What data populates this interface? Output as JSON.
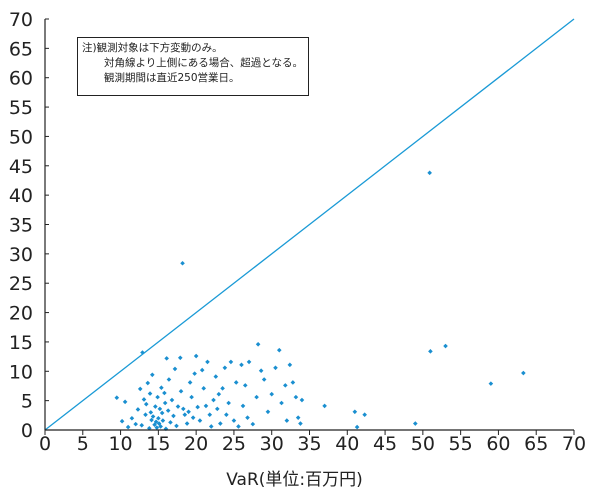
{
  "chart_data": {
    "type": "scatter",
    "xlabel": "VaR(単位:百万円)",
    "ylabel": "",
    "xlim": [
      0,
      70
    ],
    "ylim": [
      0,
      70
    ],
    "xticks": [
      0,
      5,
      10,
      15,
      20,
      25,
      30,
      35,
      40,
      45,
      50,
      55,
      60,
      65,
      70
    ],
    "yticks": [
      0,
      5,
      10,
      15,
      20,
      25,
      30,
      35,
      40,
      45,
      50,
      55,
      60,
      65,
      70
    ],
    "grid": false,
    "reference_line": {
      "from": [
        0,
        0
      ],
      "to": [
        70,
        70
      ],
      "color": "#1a9ad6"
    },
    "note": {
      "line1": "注)観測対象は下方変動のみ。",
      "line2": "対角線より上側にある場合、超過となる。",
      "line3": "観測期間は直近250営業日。"
    },
    "colors": {
      "points": "#1a8fd0",
      "line": "#1a9ad6",
      "axis": "#222222"
    },
    "points": [
      [
        9.5,
        5.5
      ],
      [
        10.2,
        1.5
      ],
      [
        10.6,
        4.8
      ],
      [
        11.0,
        0.5
      ],
      [
        11.5,
        2.0
      ],
      [
        12.0,
        1.0
      ],
      [
        12.3,
        3.5
      ],
      [
        12.6,
        7.0
      ],
      [
        12.8,
        0.8
      ],
      [
        12.9,
        13.2
      ],
      [
        13.1,
        5.2
      ],
      [
        13.3,
        2.6
      ],
      [
        13.4,
        4.4
      ],
      [
        13.6,
        8.0
      ],
      [
        13.8,
        0.3
      ],
      [
        13.9,
        6.2
      ],
      [
        14.0,
        3.0
      ],
      [
        14.1,
        1.7
      ],
      [
        14.2,
        9.4
      ],
      [
        14.3,
        2.3
      ],
      [
        14.5,
        0.9
      ],
      [
        14.6,
        4.0
      ],
      [
        14.7,
        1.4
      ],
      [
        14.8,
        0.4
      ],
      [
        14.9,
        5.6
      ],
      [
        15.0,
        2.0
      ],
      [
        15.1,
        1.1
      ],
      [
        15.2,
        3.6
      ],
      [
        15.3,
        0.6
      ],
      [
        15.4,
        7.2
      ],
      [
        15.5,
        2.9
      ],
      [
        15.6,
        1.6
      ],
      [
        15.8,
        6.3
      ],
      [
        15.9,
        4.6
      ],
      [
        16.0,
        0.2
      ],
      [
        16.1,
        12.2
      ],
      [
        16.3,
        3.3
      ],
      [
        16.4,
        8.6
      ],
      [
        16.6,
        1.3
      ],
      [
        16.8,
        5.1
      ],
      [
        17.0,
        2.4
      ],
      [
        17.2,
        10.4
      ],
      [
        17.4,
        0.7
      ],
      [
        17.6,
        4.0
      ],
      [
        17.9,
        12.3
      ],
      [
        18.0,
        6.6
      ],
      [
        18.2,
        28.4
      ],
      [
        18.3,
        3.6
      ],
      [
        18.5,
        2.6
      ],
      [
        18.8,
        1.1
      ],
      [
        19.0,
        3.1
      ],
      [
        19.2,
        8.1
      ],
      [
        19.4,
        5.6
      ],
      [
        19.6,
        2.1
      ],
      [
        19.8,
        9.6
      ],
      [
        20.0,
        12.6
      ],
      [
        20.2,
        3.9
      ],
      [
        20.5,
        1.6
      ],
      [
        20.8,
        10.2
      ],
      [
        21.0,
        7.1
      ],
      [
        21.3,
        4.1
      ],
      [
        21.5,
        11.6
      ],
      [
        21.8,
        2.6
      ],
      [
        22.0,
        0.6
      ],
      [
        22.3,
        5.1
      ],
      [
        22.6,
        9.1
      ],
      [
        22.8,
        3.6
      ],
      [
        23.0,
        6.1
      ],
      [
        23.2,
        1.1
      ],
      [
        23.5,
        7.1
      ],
      [
        23.8,
        10.6
      ],
      [
        24.0,
        2.6
      ],
      [
        24.3,
        4.6
      ],
      [
        24.6,
        11.6
      ],
      [
        25.0,
        1.6
      ],
      [
        25.3,
        8.1
      ],
      [
        25.6,
        0.6
      ],
      [
        26.0,
        11.1
      ],
      [
        26.2,
        4.1
      ],
      [
        26.5,
        7.6
      ],
      [
        26.8,
        2.1
      ],
      [
        27.0,
        11.6
      ],
      [
        27.5,
        1.0
      ],
      [
        28.0,
        5.6
      ],
      [
        28.2,
        14.6
      ],
      [
        28.6,
        10.1
      ],
      [
        29.0,
        8.6
      ],
      [
        29.5,
        3.1
      ],
      [
        30.0,
        6.1
      ],
      [
        30.5,
        10.6
      ],
      [
        31.0,
        13.6
      ],
      [
        31.3,
        4.6
      ],
      [
        31.8,
        7.6
      ],
      [
        32.0,
        1.6
      ],
      [
        32.4,
        11.1
      ],
      [
        32.8,
        8.1
      ],
      [
        33.2,
        5.6
      ],
      [
        33.5,
        2.1
      ],
      [
        33.8,
        1.1
      ],
      [
        34.0,
        5.1
      ],
      [
        37.0,
        4.1
      ],
      [
        41.0,
        3.1
      ],
      [
        41.3,
        0.5
      ],
      [
        42.3,
        2.6
      ],
      [
        49.0,
        1.1
      ],
      [
        50.9,
        43.8
      ],
      [
        51.0,
        13.4
      ],
      [
        53.0,
        14.3
      ],
      [
        59.0,
        7.9
      ],
      [
        63.3,
        9.7
      ]
    ]
  }
}
